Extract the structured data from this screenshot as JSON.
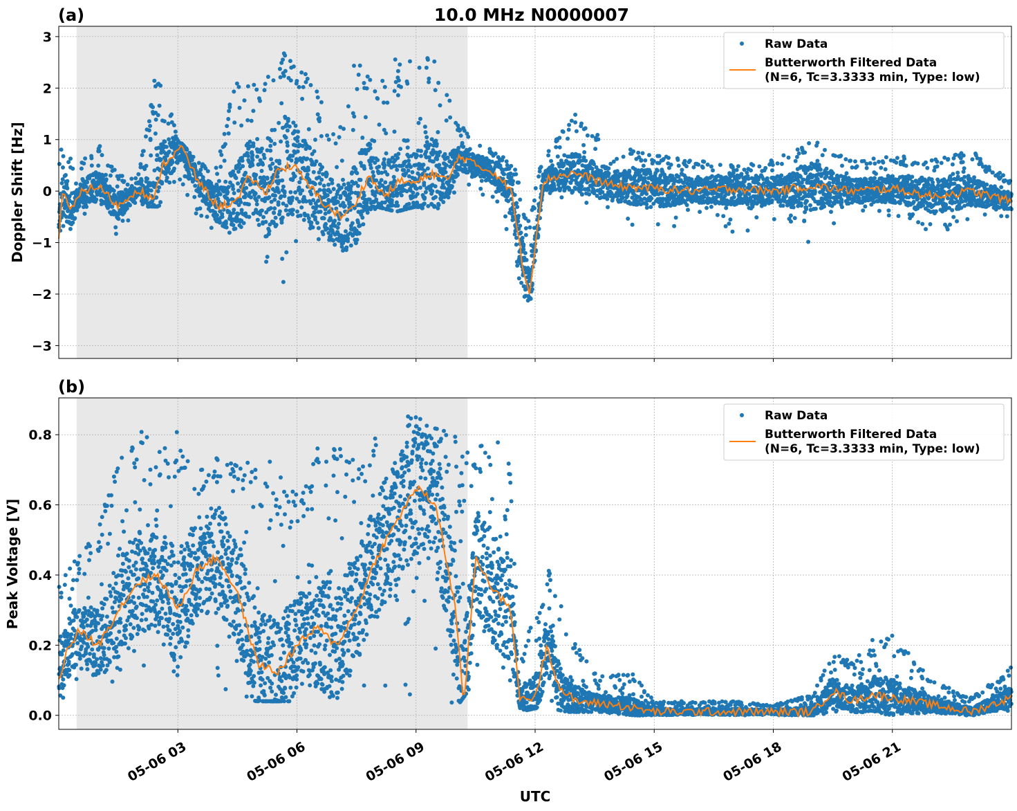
{
  "chart_data": {
    "type": "scatter",
    "title": "10.0 MHz N0000007",
    "xlabel": "UTC",
    "x_ticks": [
      "05-06 03",
      "05-06 06",
      "05-06 09",
      "05-06 12",
      "05-06 15",
      "05-06 18",
      "05-06 21"
    ],
    "x_range_hours": [
      0,
      24
    ],
    "shaded_span_hours": [
      0.45,
      10.3
    ],
    "colors": {
      "raw": "#1f77b4",
      "filtered": "#ff7f0e",
      "shade": "#e8e8e8"
    },
    "grid": true,
    "legend_placement": "top-right",
    "panels": [
      {
        "label": "(a)",
        "ylabel": "Doppler Shift [Hz]",
        "ylim": [
          -3.25,
          3.2
        ],
        "y_ticks": [
          3,
          2,
          1,
          0,
          -1,
          -2,
          -3
        ],
        "y_tick_labels": [
          "3",
          "2",
          "1",
          "0",
          "−1",
          "−2",
          "−3"
        ],
        "legend": {
          "raw": "Raw Data",
          "filtered_line1": "Butterworth Filtered Data",
          "filtered_line2": "(N=6, Tc=3.3333 min, Type: low)"
        },
        "filtered_series": {
          "name": "Butterworth Filtered Data",
          "hours": [
            0.0,
            0.1,
            0.3,
            0.6,
            1.0,
            1.5,
            2.0,
            2.4,
            2.6,
            3.1,
            3.5,
            4.0,
            4.5,
            4.8,
            5.2,
            5.5,
            5.9,
            6.3,
            6.7,
            7.1,
            7.4,
            7.8,
            8.2,
            8.6,
            9.0,
            9.4,
            9.8,
            10.1,
            10.5,
            11.0,
            11.4,
            11.7,
            11.85,
            12.2,
            12.6,
            13.0,
            14.0,
            15.0,
            16.0,
            17.0,
            18.0,
            19.0,
            20.0,
            21.0,
            22.0,
            23.0,
            24.0
          ],
          "values": [
            -0.9,
            0.05,
            -0.4,
            0.0,
            0.1,
            -0.3,
            0.05,
            -0.2,
            0.5,
            0.85,
            0.2,
            -0.3,
            -0.2,
            0.3,
            -0.05,
            0.4,
            0.5,
            0.1,
            -0.25,
            -0.5,
            -0.35,
            0.3,
            -0.1,
            0.2,
            0.15,
            0.35,
            0.2,
            0.7,
            0.5,
            0.35,
            0.0,
            -1.5,
            -2.0,
            0.2,
            0.3,
            0.35,
            0.1,
            0.05,
            0.0,
            0.05,
            0.0,
            0.1,
            0.0,
            0.05,
            -0.1,
            0.0,
            -0.2
          ]
        },
        "raw_envelope": {
          "name": "Raw Data",
          "hours": [
            0.0,
            0.5,
            1.0,
            1.5,
            2.0,
            2.5,
            3.0,
            3.5,
            4.0,
            4.5,
            5.0,
            5.5,
            6.0,
            6.5,
            7.0,
            7.5,
            8.0,
            8.5,
            9.0,
            9.5,
            10.0,
            10.5,
            11.0,
            11.5,
            11.8,
            12.2,
            13.0,
            14.0,
            15.0,
            16.0,
            17.0,
            18.0,
            19.0,
            20.0,
            21.0,
            22.0,
            23.0,
            24.0
          ],
          "upper": [
            0.9,
            0.5,
            0.95,
            0.3,
            0.3,
            2.6,
            1.0,
            0.6,
            0.5,
            2.5,
            2.2,
            2.8,
            2.6,
            2.0,
            1.0,
            2.7,
            2.3,
            2.6,
            2.6,
            2.6,
            1.4,
            1.0,
            0.8,
            0.5,
            -0.5,
            0.7,
            1.5,
            0.9,
            0.7,
            0.6,
            0.5,
            0.6,
            1.0,
            0.6,
            0.7,
            0.6,
            0.8,
            0.2
          ],
          "lower": [
            -1.5,
            -0.5,
            -0.4,
            -0.9,
            -0.3,
            -0.3,
            0.0,
            -0.5,
            -0.9,
            -0.8,
            -1.0,
            -2.0,
            -1.5,
            -1.0,
            -1.8,
            -1.0,
            -0.3,
            -0.4,
            -0.3,
            -0.4,
            0.0,
            0.0,
            -0.2,
            -1.5,
            -2.9,
            -0.1,
            -0.3,
            -0.4,
            -1.0,
            -0.4,
            -0.9,
            -0.6,
            -1.1,
            -0.4,
            -0.5,
            -1.0,
            -0.5,
            -0.5
          ]
        }
      },
      {
        "label": "(b)",
        "ylabel": "Peak Voltage [V]",
        "ylim": [
          -0.04,
          0.905
        ],
        "y_ticks": [
          0.8,
          0.6,
          0.4,
          0.2,
          0.0
        ],
        "y_tick_labels": [
          "0.8",
          "0.6",
          "0.4",
          "0.2",
          "0.0"
        ],
        "legend": {
          "raw": "Raw Data",
          "filtered_line1": "Butterworth Filtered Data",
          "filtered_line2": "(N=6, Tc=3.3333 min, Type: low)"
        },
        "filtered_series": {
          "name": "Butterworth Filtered Data",
          "hours": [
            0.0,
            0.2,
            0.5,
            1.0,
            1.5,
            2.0,
            2.5,
            3.0,
            3.5,
            4.0,
            4.5,
            5.0,
            5.5,
            6.0,
            6.5,
            7.0,
            7.5,
            8.0,
            8.5,
            9.0,
            9.5,
            10.0,
            10.2,
            10.5,
            11.0,
            11.4,
            11.6,
            12.0,
            12.3,
            12.6,
            13.0,
            14.0,
            15.0,
            16.0,
            17.0,
            18.0,
            19.0,
            19.5,
            20.0,
            20.5,
            21.0,
            22.0,
            23.0,
            24.0
          ],
          "values": [
            0.1,
            0.18,
            0.24,
            0.2,
            0.3,
            0.38,
            0.4,
            0.3,
            0.42,
            0.45,
            0.35,
            0.15,
            0.12,
            0.2,
            0.25,
            0.2,
            0.3,
            0.45,
            0.55,
            0.65,
            0.6,
            0.3,
            0.02,
            0.45,
            0.35,
            0.3,
            0.05,
            0.05,
            0.2,
            0.08,
            0.04,
            0.03,
            0.01,
            0.01,
            0.01,
            0.01,
            0.01,
            0.07,
            0.04,
            0.06,
            0.05,
            0.03,
            0.01,
            0.05
          ]
        },
        "raw_envelope": {
          "name": "Raw Data",
          "hours": [
            0.0,
            0.5,
            1.0,
            1.5,
            2.0,
            2.5,
            3.0,
            3.5,
            4.0,
            4.5,
            5.0,
            5.5,
            6.0,
            6.5,
            7.0,
            7.5,
            8.0,
            8.5,
            9.0,
            9.5,
            10.0,
            10.5,
            11.0,
            11.4,
            11.6,
            12.0,
            12.4,
            12.8,
            13.5,
            14.5,
            15.0,
            16.0,
            17.0,
            18.0,
            19.0,
            19.5,
            20.0,
            20.5,
            21.0,
            22.0,
            23.0,
            24.0
          ],
          "upper": [
            0.4,
            0.45,
            0.55,
            0.73,
            0.83,
            0.75,
            0.82,
            0.7,
            0.75,
            0.72,
            0.75,
            0.72,
            0.65,
            0.78,
            0.79,
            0.72,
            0.83,
            0.85,
            0.86,
            0.82,
            0.8,
            0.75,
            0.82,
            0.7,
            0.15,
            0.3,
            0.43,
            0.25,
            0.12,
            0.12,
            0.04,
            0.04,
            0.04,
            0.03,
            0.06,
            0.18,
            0.15,
            0.22,
            0.23,
            0.1,
            0.05,
            0.14
          ],
          "lower": [
            0.04,
            0.08,
            0.1,
            0.08,
            0.1,
            0.12,
            0.08,
            0.07,
            0.07,
            0.05,
            0.04,
            0.04,
            0.04,
            0.04,
            0.05,
            0.04,
            0.04,
            0.05,
            0.05,
            0.05,
            0.02,
            0.1,
            0.1,
            0.05,
            0.01,
            0.02,
            0.02,
            0.01,
            0.01,
            0.0,
            0.0,
            0.0,
            0.0,
            0.0,
            0.0,
            0.0,
            0.0,
            0.0,
            0.0,
            0.0,
            0.0,
            0.01
          ]
        }
      }
    ]
  }
}
